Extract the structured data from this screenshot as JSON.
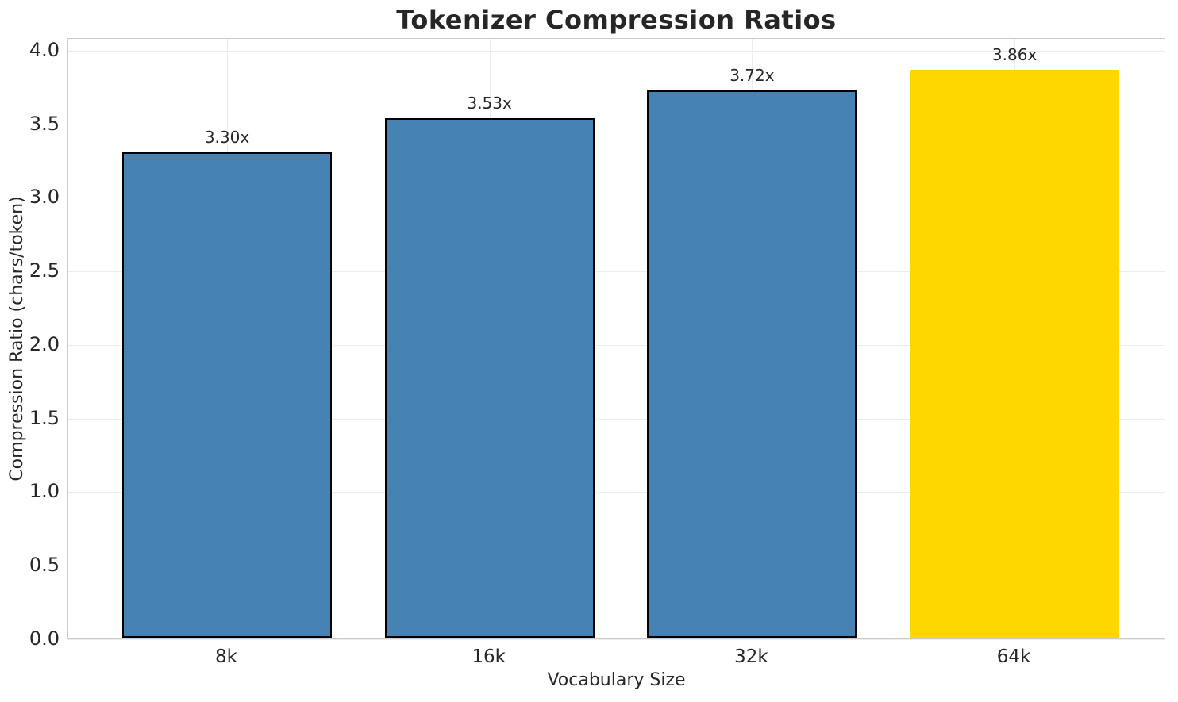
{
  "chart_data": {
    "type": "bar",
    "title": "Tokenizer Compression Ratios",
    "xlabel": "Vocabulary Size",
    "ylabel": "Compression Ratio (chars/token)",
    "categories": [
      "8k",
      "16k",
      "32k",
      "64k"
    ],
    "values": [
      3.3,
      3.53,
      3.72,
      3.86
    ],
    "bar_labels": [
      "3.30x",
      "3.53x",
      "3.72x",
      "3.86x"
    ],
    "ylim": [
      0,
      4.08
    ],
    "yticks": [
      0.0,
      0.5,
      1.0,
      1.5,
      2.0,
      2.5,
      3.0,
      3.5,
      4.0
    ],
    "ytick_labels": [
      "0.0",
      "0.5",
      "1.0",
      "1.5",
      "2.0",
      "2.5",
      "3.0",
      "3.5",
      "4.0"
    ],
    "grid": true,
    "legend": "none",
    "bar_colors": [
      "#4682b4",
      "#4682b4",
      "#4682b4",
      "#ffd700"
    ],
    "bar_edge_colors": [
      "#000000",
      "#000000",
      "#000000",
      "none"
    ],
    "highlight_index": 3,
    "colors": {
      "bar_default": "#4682b4",
      "bar_highlight": "#ffd700",
      "bar_edge": "#000000",
      "grid": "#ececec",
      "spine": "#cccccc",
      "text": "#262626"
    }
  }
}
